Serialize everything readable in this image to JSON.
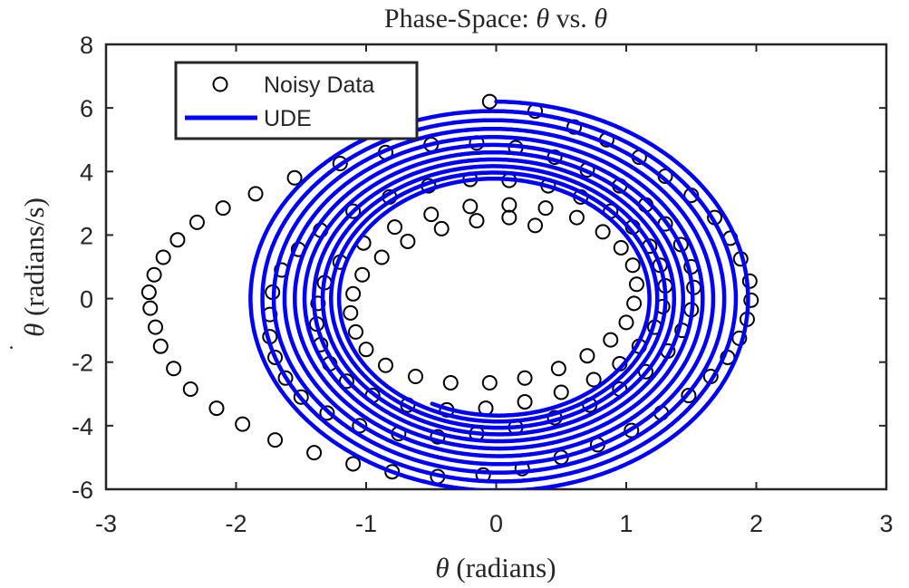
{
  "chart_data": {
    "type": "scatter",
    "title": "Phase-Space: θ vs. θ",
    "title_parts": {
      "prefix": "Phase-Space: ",
      "var1": "θ",
      "mid": " vs. ",
      "var2": "θ"
    },
    "xlabel": "θ (radians)",
    "xlabel_parts": {
      "var": "θ",
      "text": " (radians)"
    },
    "ylabel": "θ̇ (radians/s)",
    "ylabel_parts": {
      "var": "θ",
      "dot": "˙",
      "text": " (radians/s)"
    },
    "xlim": [
      -3,
      3
    ],
    "ylim": [
      -6,
      8
    ],
    "xticks": [
      -3,
      -2,
      -1,
      0,
      1,
      2,
      3
    ],
    "yticks": [
      -6,
      -4,
      -2,
      0,
      2,
      4,
      6,
      8
    ],
    "xtick_labels": [
      "-3",
      "-2",
      "-1",
      "0",
      "1",
      "2",
      "3"
    ],
    "ytick_labels": [
      "-6",
      "-4",
      "-2",
      "0",
      "2",
      "4",
      "6",
      "8"
    ],
    "grid": false,
    "legend_position": "top-left",
    "legend": [
      {
        "name": "Noisy Data",
        "marker": "circle-open",
        "color": "#000000"
      },
      {
        "name": "UDE",
        "marker": "line",
        "color": "#0000ff"
      }
    ],
    "series": [
      {
        "name": "UDE",
        "kind": "line",
        "color": "#0000ff",
        "spiral": {
          "t_start": 0,
          "t_end": 21,
          "x0": 0.0,
          "v0": 6.2,
          "gamma": 0.025,
          "omega_sq": 10.0,
          "step": 0.002
        }
      },
      {
        "name": "Noisy Data",
        "kind": "markers",
        "color": "#000000",
        "points": [
          [
            -0.05,
            6.2
          ],
          [
            0.3,
            5.9
          ],
          [
            0.6,
            5.4
          ],
          [
            0.85,
            5.0
          ],
          [
            1.1,
            4.45
          ],
          [
            1.3,
            3.85
          ],
          [
            1.5,
            3.25
          ],
          [
            1.68,
            2.55
          ],
          [
            1.8,
            1.9
          ],
          [
            1.88,
            1.25
          ],
          [
            1.95,
            0.55
          ],
          [
            1.96,
            -0.05
          ],
          [
            1.93,
            -0.65
          ],
          [
            1.87,
            -1.25
          ],
          [
            1.78,
            -1.85
          ],
          [
            1.65,
            -2.45
          ],
          [
            1.48,
            -3.05
          ],
          [
            1.27,
            -3.6
          ],
          [
            1.04,
            -4.15
          ],
          [
            0.78,
            -4.6
          ],
          [
            0.5,
            -5.0
          ],
          [
            0.2,
            -5.35
          ],
          [
            -0.1,
            -5.55
          ],
          [
            -0.45,
            -5.6
          ],
          [
            -0.8,
            -5.45
          ],
          [
            -1.1,
            -5.2
          ],
          [
            -1.4,
            -4.85
          ],
          [
            -1.7,
            -4.45
          ],
          [
            -1.95,
            -3.95
          ],
          [
            -2.15,
            -3.45
          ],
          [
            -2.35,
            -2.85
          ],
          [
            -2.48,
            -2.2
          ],
          [
            -2.58,
            -1.5
          ],
          [
            -2.62,
            -0.9
          ],
          [
            -2.66,
            -0.3
          ],
          [
            -2.67,
            0.2
          ],
          [
            -2.63,
            0.75
          ],
          [
            -2.56,
            1.3
          ],
          [
            -2.45,
            1.85
          ],
          [
            -2.3,
            2.4
          ],
          [
            -2.1,
            2.85
          ],
          [
            -1.85,
            3.3
          ],
          [
            -1.55,
            3.8
          ],
          [
            -1.2,
            4.25
          ],
          [
            -0.85,
            4.6
          ],
          [
            -0.5,
            4.85
          ],
          [
            -0.15,
            4.9
          ],
          [
            0.15,
            4.75
          ],
          [
            0.45,
            4.45
          ],
          [
            0.7,
            4.05
          ],
          [
            0.95,
            3.55
          ],
          [
            1.15,
            2.95
          ],
          [
            1.3,
            2.35
          ],
          [
            1.42,
            1.7
          ],
          [
            1.5,
            1.0
          ],
          [
            1.52,
            0.35
          ],
          [
            1.5,
            -0.35
          ],
          [
            1.43,
            -1.0
          ],
          [
            1.32,
            -1.65
          ],
          [
            1.15,
            -2.3
          ],
          [
            0.95,
            -2.85
          ],
          [
            0.72,
            -3.35
          ],
          [
            0.45,
            -3.75
          ],
          [
            0.15,
            -4.05
          ],
          [
            -0.15,
            -4.25
          ],
          [
            -0.45,
            -4.35
          ],
          [
            -0.75,
            -4.25
          ],
          [
            -1.05,
            -4.0
          ],
          [
            -1.3,
            -3.6
          ],
          [
            -1.5,
            -3.1
          ],
          [
            -1.62,
            -2.5
          ],
          [
            -1.7,
            -1.85
          ],
          [
            -1.74,
            -1.2
          ],
          [
            -1.74,
            -0.5
          ],
          [
            -1.72,
            0.2
          ],
          [
            -1.65,
            0.9
          ],
          [
            -1.52,
            1.55
          ],
          [
            -1.35,
            2.15
          ],
          [
            -1.1,
            2.75
          ],
          [
            -0.82,
            3.2
          ],
          [
            -0.52,
            3.55
          ],
          [
            -0.2,
            3.75
          ],
          [
            0.1,
            3.72
          ],
          [
            0.4,
            3.55
          ],
          [
            0.65,
            3.2
          ],
          [
            0.88,
            2.75
          ],
          [
            1.05,
            2.25
          ],
          [
            1.18,
            1.65
          ],
          [
            1.26,
            1.05
          ],
          [
            1.3,
            0.4
          ],
          [
            1.28,
            -0.25
          ],
          [
            1.22,
            -0.9
          ],
          [
            1.1,
            -1.5
          ],
          [
            0.95,
            -2.05
          ],
          [
            0.75,
            -2.55
          ],
          [
            0.5,
            -2.95
          ],
          [
            0.22,
            -3.25
          ],
          [
            -0.08,
            -3.45
          ],
          [
            -0.38,
            -3.5
          ],
          [
            -0.68,
            -3.35
          ],
          [
            -0.95,
            -3.05
          ],
          [
            -1.15,
            -2.6
          ],
          [
            -1.28,
            -2.05
          ],
          [
            -1.35,
            -1.45
          ],
          [
            -1.38,
            -0.8
          ],
          [
            -1.37,
            -0.15
          ],
          [
            -1.32,
            0.5
          ],
          [
            -1.2,
            1.15
          ],
          [
            -1.02,
            1.75
          ],
          [
            -0.78,
            2.25
          ],
          [
            -0.5,
            2.65
          ],
          [
            -0.2,
            2.9
          ],
          [
            0.1,
            2.95
          ],
          [
            0.38,
            2.85
          ],
          [
            0.62,
            2.55
          ],
          [
            0.82,
            2.1
          ],
          [
            0.96,
            1.6
          ],
          [
            1.05,
            1.05
          ],
          [
            1.08,
            0.45
          ],
          [
            1.06,
            -0.15
          ],
          [
            1.0,
            -0.75
          ],
          [
            0.88,
            -1.3
          ],
          [
            0.7,
            -1.8
          ],
          [
            0.48,
            -2.2
          ],
          [
            0.22,
            -2.5
          ],
          [
            -0.05,
            -2.65
          ],
          [
            -0.35,
            -2.65
          ],
          [
            -0.62,
            -2.45
          ],
          [
            -0.85,
            -2.1
          ],
          [
            -1.0,
            -1.6
          ],
          [
            -1.08,
            -1.05
          ],
          [
            -1.12,
            -0.45
          ],
          [
            -1.1,
            0.15
          ],
          [
            -1.03,
            0.75
          ],
          [
            -0.88,
            1.3
          ],
          [
            -0.68,
            1.8
          ],
          [
            -0.42,
            2.2
          ],
          [
            -0.15,
            2.45
          ],
          [
            0.1,
            2.55
          ],
          [
            0.3,
            2.3
          ]
        ]
      }
    ]
  }
}
